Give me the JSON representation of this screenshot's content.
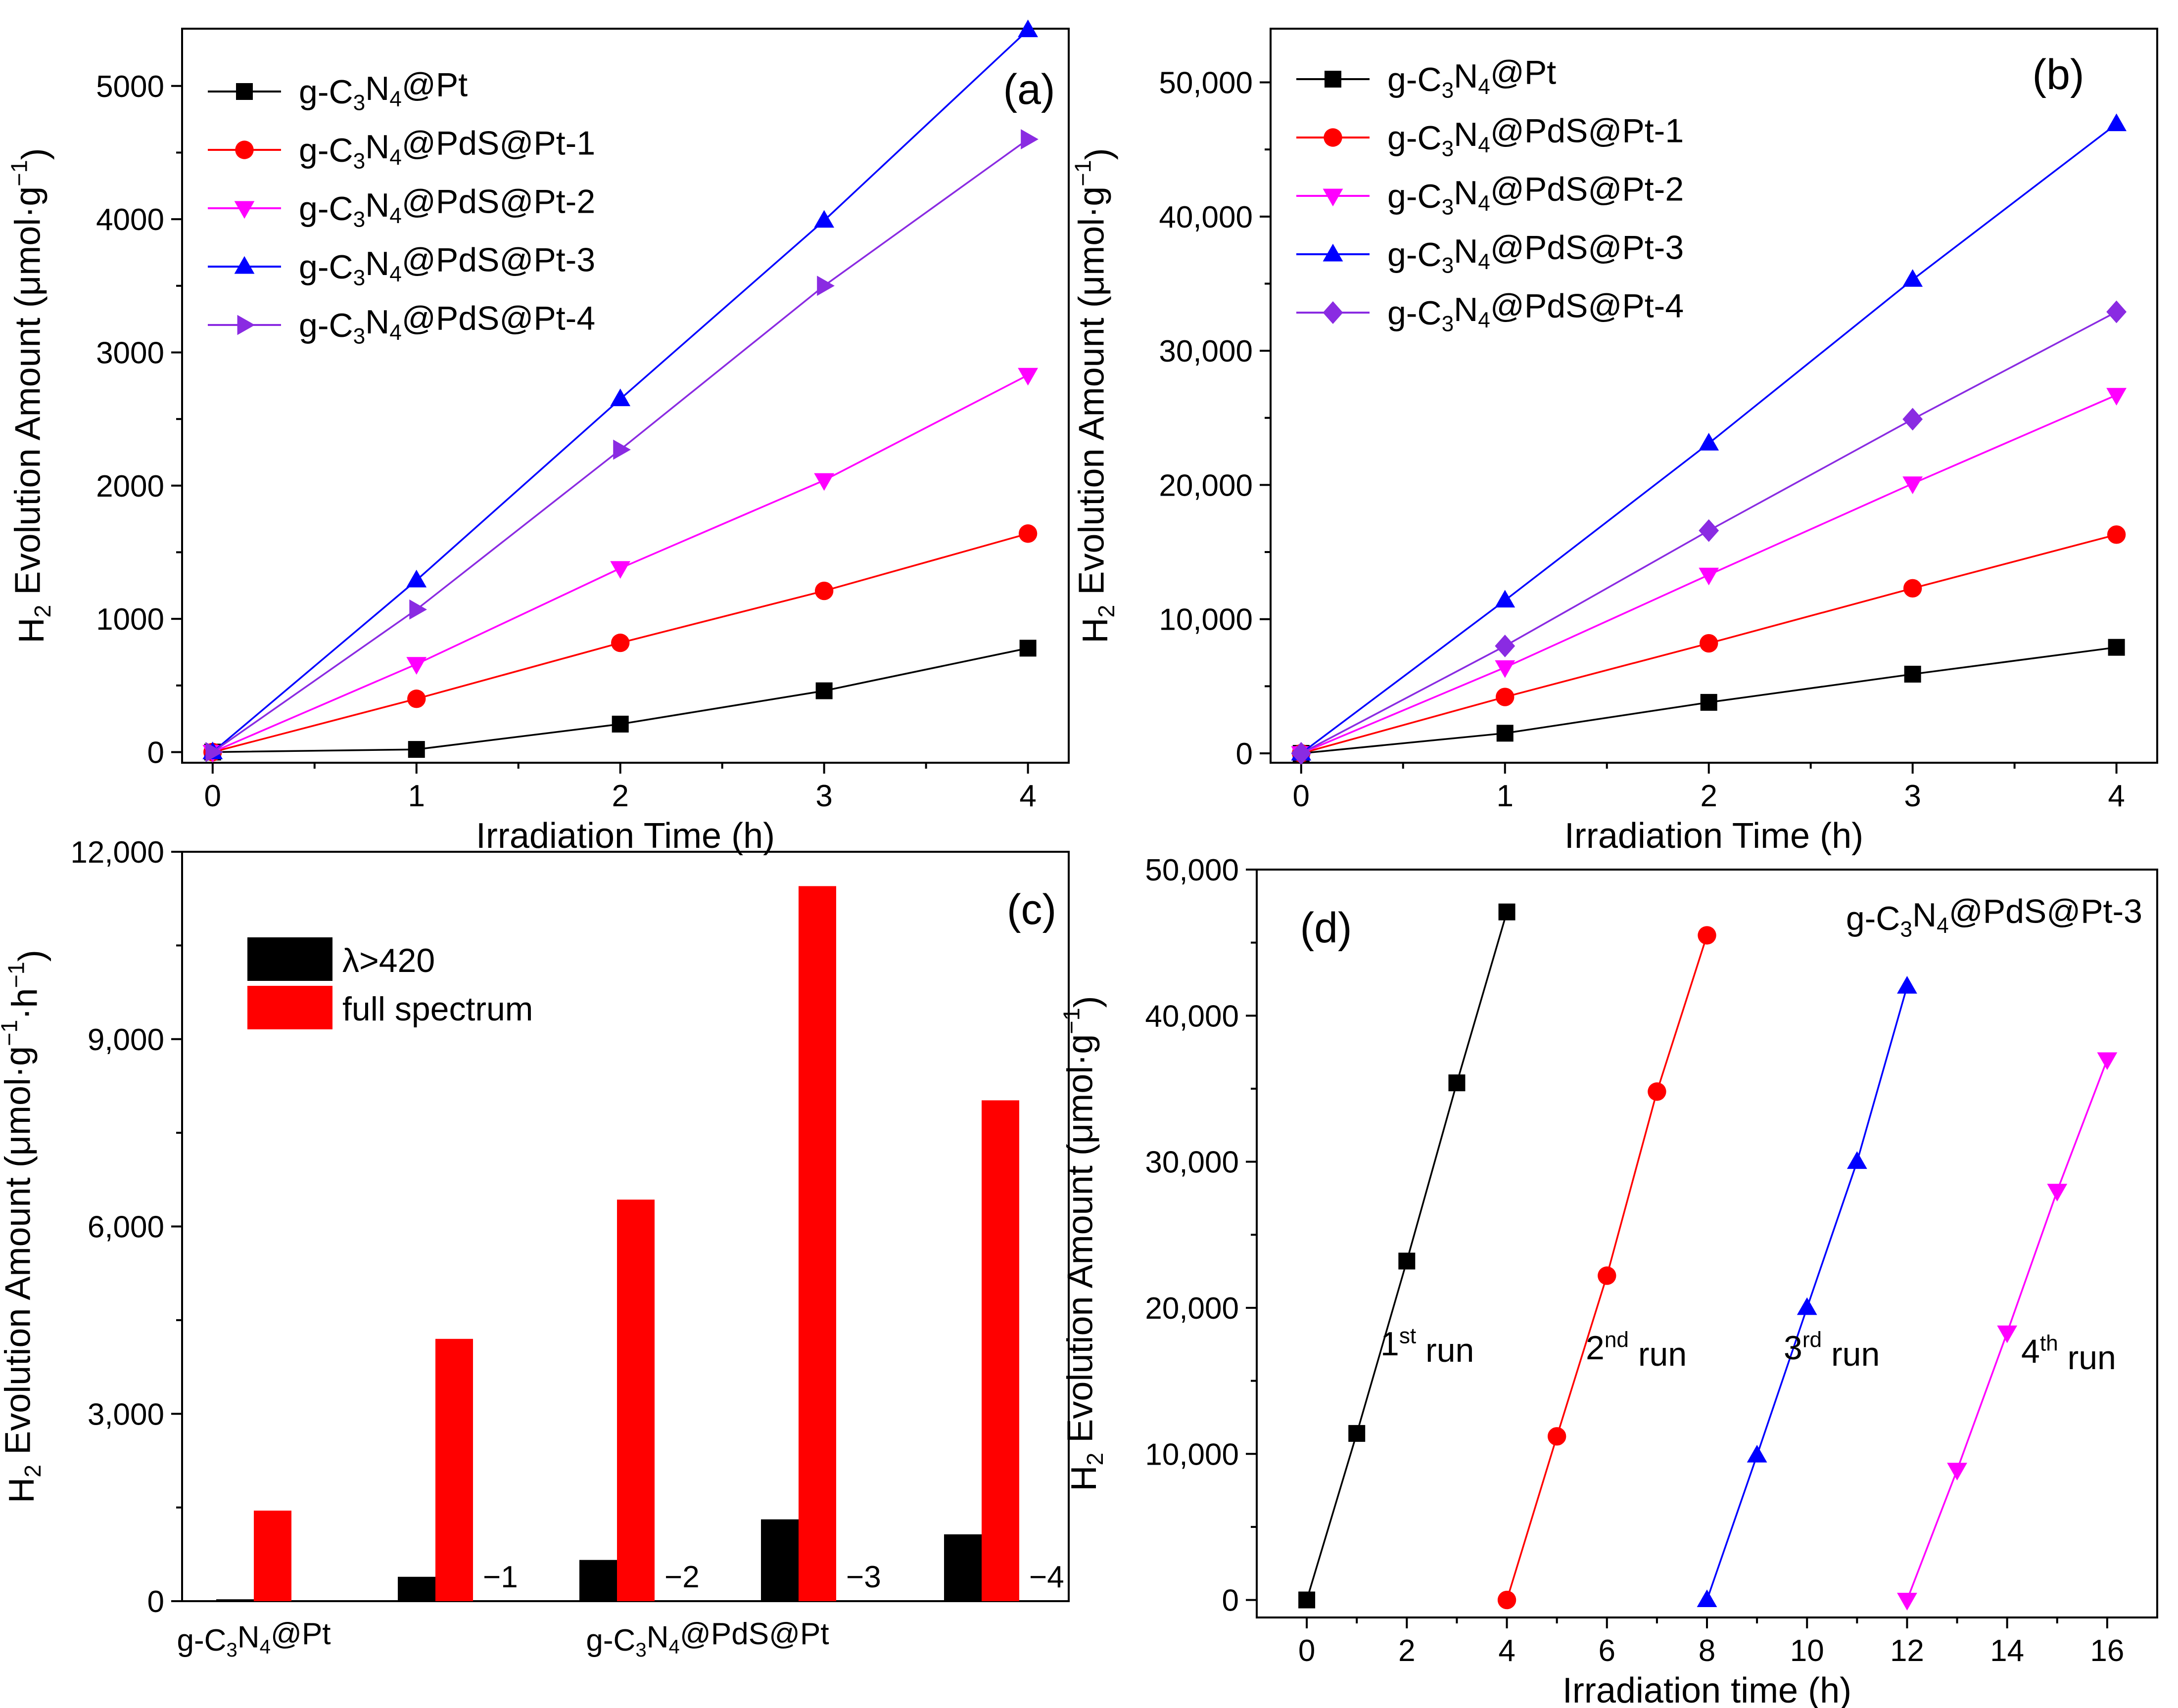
{
  "chart_data": [
    {
      "panel": "(a)",
      "type": "line",
      "xlabel": "Irradiation Time (h)",
      "ylabel": {
        "h": "H",
        "sub": "2",
        "rest": " Evolution Amount (μmol·g",
        "sup": "−1",
        "close": ")"
      },
      "xlim": [
        -0.15,
        4.2
      ],
      "ylim": [
        -80,
        5430
      ],
      "x": [
        0,
        1,
        2,
        3,
        4
      ],
      "xticks": [
        0,
        1,
        2,
        3,
        4
      ],
      "yticks": [
        0,
        1000,
        2000,
        3000,
        4000,
        5000
      ],
      "ytick_labels": [
        "0",
        "1000",
        "2000",
        "3000",
        "4000",
        "5000"
      ],
      "series": [
        {
          "name": "g-C3N4@Pt",
          "label": {
            "pre": "g-C",
            "s1": "3",
            "mid": "N",
            "s2": "4",
            "post": "@Pt"
          },
          "color": "#000000",
          "marker": "square",
          "values": [
            0,
            20,
            210,
            460,
            780
          ]
        },
        {
          "name": "g-C3N4@PdS@Pt-1",
          "label": {
            "pre": "g-C",
            "s1": "3",
            "mid": "N",
            "s2": "4",
            "post": "@PdS@Pt-1"
          },
          "color": "#ff0000",
          "marker": "circle",
          "values": [
            0,
            400,
            820,
            1210,
            1640
          ]
        },
        {
          "name": "g-C3N4@PdS@Pt-2",
          "label": {
            "pre": "g-C",
            "s1": "3",
            "mid": "N",
            "s2": "4",
            "post": "@PdS@Pt-2"
          },
          "color": "#ff00ff",
          "marker": "triangle-down",
          "values": [
            0,
            660,
            1380,
            2040,
            2830
          ]
        },
        {
          "name": "g-C3N4@PdS@Pt-3",
          "label": {
            "pre": "g-C",
            "s1": "3",
            "mid": "N",
            "s2": "4",
            "post": "@PdS@Pt-3"
          },
          "color": "#0000ff",
          "marker": "triangle-up",
          "values": [
            0,
            1290,
            2650,
            3990,
            5420
          ]
        },
        {
          "name": "g-C3N4@PdS@Pt-4",
          "label": {
            "pre": "g-C",
            "s1": "3",
            "mid": "N",
            "s2": "4",
            "post": "@PdS@Pt-4"
          },
          "color": "#8a2be2",
          "marker": "triangle-right",
          "values": [
            0,
            1070,
            2270,
            3500,
            4600
          ]
        }
      ]
    },
    {
      "panel": "(b)",
      "type": "line",
      "xlabel": "Irradiation Time (h)",
      "ylabel": {
        "h": "H",
        "sub": "2",
        "rest": " Evolution Amount (μmol·g",
        "sup": "−1",
        "close": ")"
      },
      "xlim": [
        -0.15,
        4.2
      ],
      "ylim": [
        -700,
        54000
      ],
      "x": [
        0,
        1,
        2,
        3,
        4
      ],
      "xticks": [
        0,
        1,
        2,
        3,
        4
      ],
      "yticks": [
        0,
        10000,
        20000,
        30000,
        40000,
        50000
      ],
      "ytick_labels": [
        "0",
        "10,000",
        "20,000",
        "30,000",
        "40,000",
        "50,000"
      ],
      "series": [
        {
          "name": "g-C3N4@Pt",
          "label": {
            "pre": "g-C",
            "s1": "3",
            "mid": "N",
            "s2": "4",
            "post": "@Pt"
          },
          "color": "#000000",
          "marker": "square",
          "values": [
            0,
            1500,
            3800,
            5900,
            7900
          ]
        },
        {
          "name": "g-C3N4@PdS@Pt-1",
          "label": {
            "pre": "g-C",
            "s1": "3",
            "mid": "N",
            "s2": "4",
            "post": "@PdS@Pt-1"
          },
          "color": "#ff0000",
          "marker": "circle",
          "values": [
            0,
            4200,
            8200,
            12300,
            16300
          ]
        },
        {
          "name": "g-C3N4@PdS@Pt-2",
          "label": {
            "pre": "g-C",
            "s1": "3",
            "mid": "N",
            "s2": "4",
            "post": "@PdS@Pt-2"
          },
          "color": "#ff00ff",
          "marker": "triangle-down",
          "values": [
            0,
            6400,
            13300,
            20100,
            26700
          ]
        },
        {
          "name": "g-C3N4@PdS@Pt-3",
          "label": {
            "pre": "g-C",
            "s1": "3",
            "mid": "N",
            "s2": "4",
            "post": "@PdS@Pt-3"
          },
          "color": "#0000ff",
          "marker": "triangle-up",
          "values": [
            0,
            11400,
            23100,
            35300,
            46900
          ]
        },
        {
          "name": "g-C3N4@PdS@Pt-4",
          "label": {
            "pre": "g-C",
            "s1": "3",
            "mid": "N",
            "s2": "4",
            "post": "@PdS@Pt-4"
          },
          "color": "#8a2be2",
          "marker": "diamond",
          "values": [
            0,
            8000,
            16600,
            24900,
            32900
          ]
        }
      ]
    },
    {
      "panel": "(c)",
      "type": "bar",
      "ylabel": {
        "h": "H",
        "sub": "2",
        "rest": " Evolution Amount (μmol·g",
        "sup": "−1",
        "rest2": "·h",
        "sup2": "−1",
        "close": ")"
      },
      "ylim": [
        0,
        12000
      ],
      "yticks": [
        0,
        3000,
        6000,
        9000,
        12000
      ],
      "ytick_labels": [
        "0",
        "3,000",
        "6,000",
        "9,000",
        "12,000"
      ],
      "categories": [
        "g-C3N4@Pt",
        "−1",
        "−2",
        "−3",
        "−4"
      ],
      "group_labels": [
        {
          "pre": "g-C",
          "s1": "3",
          "mid": "N",
          "s2": "4",
          "post": "@Pt"
        },
        {
          "pre": "g-C",
          "s1": "3",
          "mid": "N",
          "s2": "4",
          "post": "@PdS@Pt"
        }
      ],
      "series": [
        {
          "name": "λ>420",
          "color": "#000000",
          "values": [
            30,
            390,
            660,
            1310,
            1070
          ]
        },
        {
          "name": "full spectrum",
          "color": "#ff0000",
          "values": [
            1450,
            4200,
            6430,
            11450,
            8020
          ]
        }
      ]
    },
    {
      "panel": "(d)",
      "type": "line",
      "title": "g-C3N4@PdS@Pt-3",
      "title_label": {
        "pre": "g-C",
        "s1": "3",
        "mid": "N",
        "s2": "4",
        "post": "@PdS@Pt-3"
      },
      "xlabel": "Irradiation time (h)",
      "ylabel": {
        "h": "H",
        "sub": "2",
        "rest": " Evolution Amount (μmol·g",
        "sup": "−1",
        "close": ")"
      },
      "xlim": [
        -1,
        17
      ],
      "ylim": [
        -1200,
        50000
      ],
      "xticks": [
        0,
        2,
        4,
        6,
        8,
        10,
        12,
        14,
        16
      ],
      "yticks": [
        0,
        10000,
        20000,
        30000,
        40000,
        50000
      ],
      "ytick_labels": [
        "0",
        "10,000",
        "20,000",
        "30,000",
        "40,000",
        "50,000"
      ],
      "series": [
        {
          "name": "1st run",
          "label": {
            "num": "1",
            "sup": "st",
            "txt": " run"
          },
          "color": "#000000",
          "marker": "square",
          "x": [
            0,
            1,
            2,
            3,
            4
          ],
          "values": [
            0,
            11400,
            23200,
            35400,
            47100
          ]
        },
        {
          "name": "2nd run",
          "label": {
            "num": "2",
            "sup": "nd",
            "txt": " run"
          },
          "color": "#ff0000",
          "marker": "circle",
          "x": [
            4,
            5,
            6,
            7,
            8
          ],
          "values": [
            0,
            11200,
            22200,
            34800,
            45500
          ]
        },
        {
          "name": "3rd run",
          "label": {
            "num": "3",
            "sup": "rd",
            "txt": " run"
          },
          "color": "#0000ff",
          "marker": "triangle-up",
          "x": [
            8,
            9,
            10,
            11,
            12
          ],
          "values": [
            0,
            9900,
            20000,
            30000,
            42000
          ]
        },
        {
          "name": "4th run",
          "label": {
            "num": "4",
            "sup": "th",
            "txt": " run"
          },
          "color": "#ff00ff",
          "marker": "triangle-down",
          "x": [
            12,
            13,
            14,
            15,
            16
          ],
          "values": [
            0,
            8900,
            18300,
            28000,
            37000
          ]
        }
      ]
    }
  ]
}
